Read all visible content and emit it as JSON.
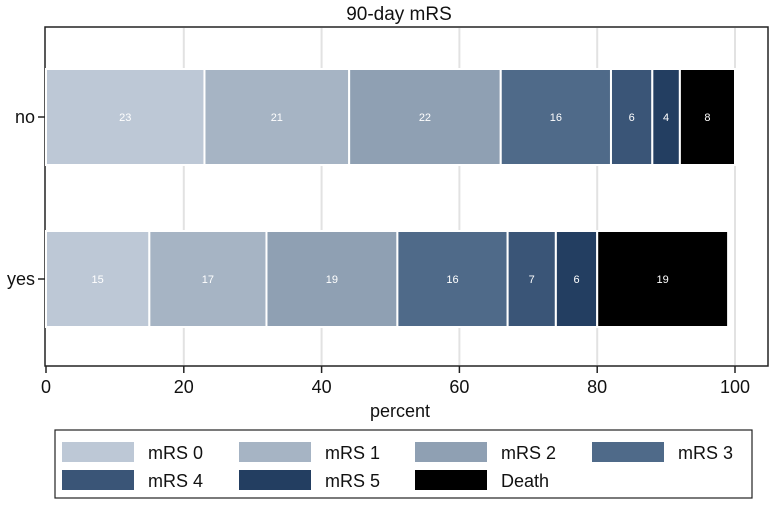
{
  "chart_data": {
    "type": "bar",
    "orientation": "horizontal",
    "stacked": true,
    "title": "90-day mRS",
    "xlabel": "percent",
    "ylabel": "",
    "xlim": [
      0,
      100
    ],
    "xticks": [
      0,
      20,
      40,
      60,
      80,
      100
    ],
    "categories": [
      "no",
      "yes"
    ],
    "series": [
      {
        "name": "mRS 0",
        "color": "#bdc8d6",
        "values": [
          23,
          15
        ],
        "labels": [
          "23",
          "15"
        ]
      },
      {
        "name": "mRS 1",
        "color": "#a6b4c4",
        "values": [
          21,
          17
        ],
        "labels": [
          "21",
          "17"
        ]
      },
      {
        "name": "mRS 2",
        "color": "#8fa0b3",
        "values": [
          22,
          19
        ],
        "labels": [
          "22",
          "19"
        ]
      },
      {
        "name": "mRS 3",
        "color": "#4f6a89",
        "values": [
          16,
          16
        ],
        "labels": [
          "16",
          "16"
        ]
      },
      {
        "name": "mRS 4",
        "color": "#3a5577",
        "values": [
          6,
          7
        ],
        "labels": [
          "6",
          "7"
        ]
      },
      {
        "name": "mRS 5",
        "color": "#233e61",
        "values": [
          4,
          6
        ],
        "labels": [
          "4",
          "6"
        ]
      },
      {
        "name": "Death",
        "color": "#000000",
        "values": [
          8,
          19
        ],
        "labels": [
          "8",
          "19"
        ]
      }
    ],
    "grid": true,
    "legend_position": "bottom"
  }
}
